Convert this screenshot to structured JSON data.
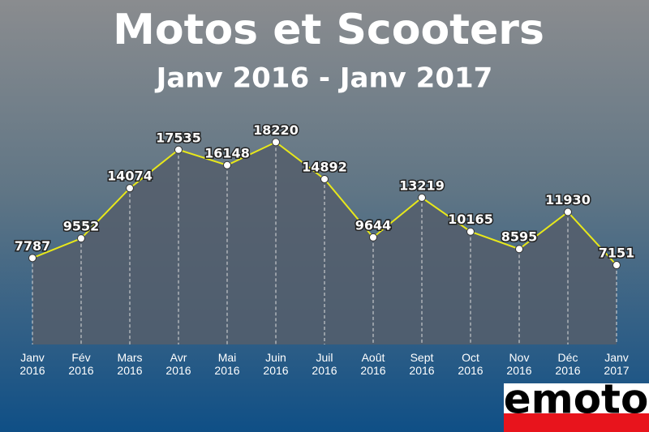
{
  "chart_data": {
    "type": "line",
    "title": "Motos et Scooters",
    "subtitle": "Janv 2016 - Janv 2017",
    "categories": [
      [
        "Janv",
        "2016"
      ],
      [
        "Fév",
        "2016"
      ],
      [
        "Mars",
        "2016"
      ],
      [
        "Avr",
        "2016"
      ],
      [
        "Mai",
        "2016"
      ],
      [
        "Juin",
        "2016"
      ],
      [
        "Juil",
        "2016"
      ],
      [
        "Août",
        "2016"
      ],
      [
        "Sept",
        "2016"
      ],
      [
        "Oct",
        "2016"
      ],
      [
        "Nov",
        "2016"
      ],
      [
        "Déc",
        "2016"
      ],
      [
        "Janv",
        "2017"
      ]
    ],
    "values": [
      7787,
      9552,
      14074,
      17535,
      16148,
      18220,
      14892,
      9644,
      13219,
      10165,
      8595,
      11930,
      7151
    ],
    "color": "#e8e81a",
    "area_color": "#555e6b",
    "ylim": [
      0,
      20000
    ],
    "logo": "emoto"
  }
}
